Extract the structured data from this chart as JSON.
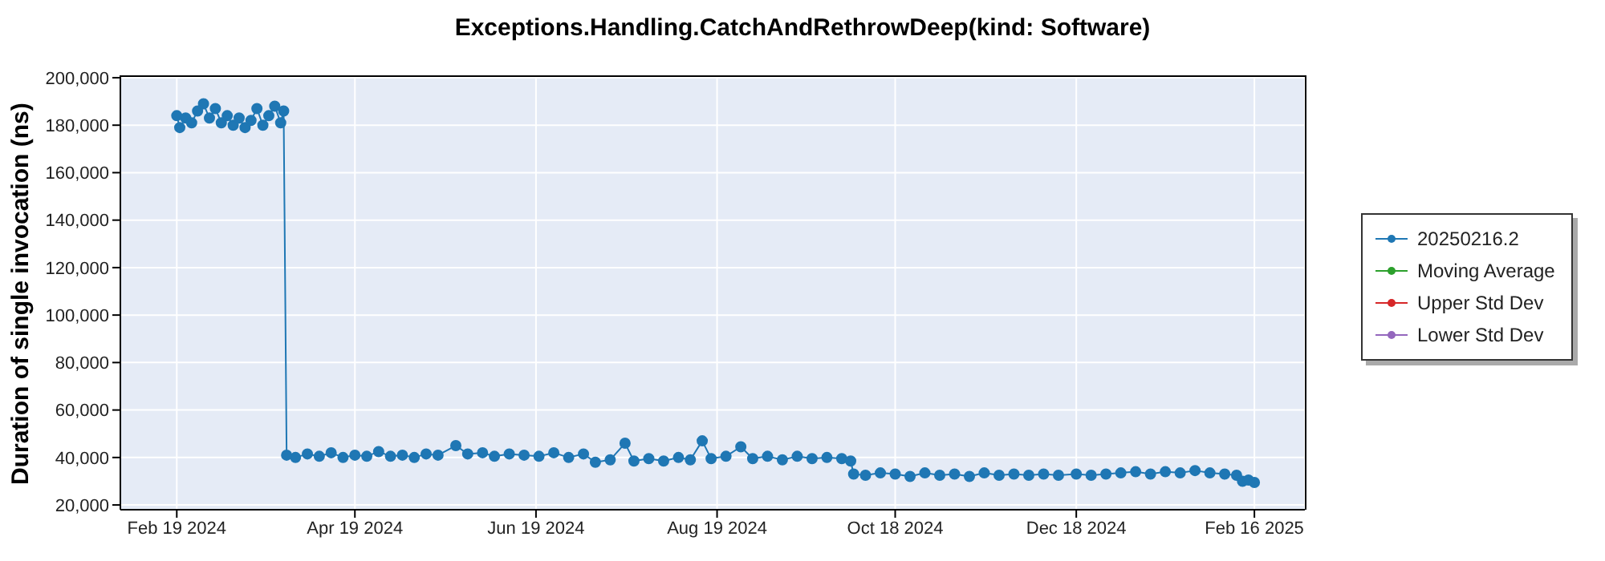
{
  "chart_data": {
    "type": "line",
    "title": "Exceptions.Handling.CatchAndRethrowDeep(kind: Software)",
    "ylabel": "Duration of single invocation (ns)",
    "xlim": [
      "2024-01-31",
      "2025-03-05"
    ],
    "xticks": [
      {
        "value": "2024-02-19",
        "label": "Feb 19 2024"
      },
      {
        "value": "2024-04-19",
        "label": "Apr 19 2024"
      },
      {
        "value": "2024-06-19",
        "label": "Jun 19 2024"
      },
      {
        "value": "2024-08-19",
        "label": "Aug 19 2024"
      },
      {
        "value": "2024-10-18",
        "label": "Oct 18 2024"
      },
      {
        "value": "2024-12-18",
        "label": "Dec 18 2024"
      },
      {
        "value": "2025-02-16",
        "label": "Feb 16 2025"
      }
    ],
    "ylim": [
      18000,
      201000
    ],
    "yticks": [
      {
        "value": 20000,
        "label": "20,000"
      },
      {
        "value": 40000,
        "label": "40,000"
      },
      {
        "value": 60000,
        "label": "60,000"
      },
      {
        "value": 80000,
        "label": "80,000"
      },
      {
        "value": 100000,
        "label": "100,000"
      },
      {
        "value": 120000,
        "label": "120,000"
      },
      {
        "value": 140000,
        "label": "140,000"
      },
      {
        "value": 160000,
        "label": "160,000"
      },
      {
        "value": 180000,
        "label": "180,000"
      },
      {
        "value": 200000,
        "label": "200,000"
      }
    ],
    "grid": true,
    "legend": "right",
    "marker": "circle",
    "line_style": "solid",
    "series": [
      {
        "name": "20250216.2",
        "color": "#1f77b4",
        "x": [
          "2024-02-19",
          "2024-02-20",
          "2024-02-22",
          "2024-02-24",
          "2024-02-26",
          "2024-02-28",
          "2024-03-01",
          "2024-03-03",
          "2024-03-05",
          "2024-03-07",
          "2024-03-09",
          "2024-03-11",
          "2024-03-13",
          "2024-03-15",
          "2024-03-17",
          "2024-03-19",
          "2024-03-21",
          "2024-03-23",
          "2024-03-25",
          "2024-03-26",
          "2024-03-27",
          "2024-03-30",
          "2024-04-03",
          "2024-04-07",
          "2024-04-11",
          "2024-04-15",
          "2024-04-19",
          "2024-04-23",
          "2024-04-27",
          "2024-05-01",
          "2024-05-05",
          "2024-05-09",
          "2024-05-13",
          "2024-05-17",
          "2024-05-23",
          "2024-05-27",
          "2024-06-01",
          "2024-06-05",
          "2024-06-10",
          "2024-06-15",
          "2024-06-20",
          "2024-06-25",
          "2024-06-30",
          "2024-07-05",
          "2024-07-09",
          "2024-07-14",
          "2024-07-19",
          "2024-07-22",
          "2024-07-27",
          "2024-08-01",
          "2024-08-06",
          "2024-08-10",
          "2024-08-14",
          "2024-08-17",
          "2024-08-22",
          "2024-08-27",
          "2024-08-31",
          "2024-09-05",
          "2024-09-10",
          "2024-09-15",
          "2024-09-20",
          "2024-09-25",
          "2024-09-30",
          "2024-10-03",
          "2024-10-04",
          "2024-10-08",
          "2024-10-13",
          "2024-10-18",
          "2024-10-23",
          "2024-10-28",
          "2024-11-02",
          "2024-11-07",
          "2024-11-12",
          "2024-11-17",
          "2024-11-22",
          "2024-11-27",
          "2024-12-02",
          "2024-12-07",
          "2024-12-12",
          "2024-12-18",
          "2024-12-23",
          "2024-12-28",
          "2025-01-02",
          "2025-01-07",
          "2025-01-12",
          "2025-01-17",
          "2025-01-22",
          "2025-01-27",
          "2025-02-01",
          "2025-02-06",
          "2025-02-10",
          "2025-02-12",
          "2025-02-14",
          "2025-02-16"
        ],
        "values": [
          184000,
          179000,
          183000,
          181000,
          186000,
          189000,
          183000,
          187000,
          181000,
          184000,
          180000,
          183000,
          179000,
          182000,
          187000,
          180000,
          184000,
          188000,
          181000,
          186000,
          41000,
          40000,
          41500,
          40500,
          42000,
          40000,
          41000,
          40500,
          42500,
          40500,
          41000,
          40000,
          41500,
          41000,
          45000,
          41500,
          42000,
          40500,
          41500,
          41000,
          40500,
          42000,
          40000,
          41500,
          38000,
          39000,
          46000,
          38500,
          39500,
          38500,
          40000,
          39000,
          47000,
          39500,
          40500,
          44500,
          39500,
          40500,
          39000,
          40500,
          39500,
          40000,
          39500,
          38500,
          33000,
          32500,
          33500,
          33000,
          32000,
          33500,
          32500,
          33000,
          32000,
          33500,
          32500,
          33000,
          32500,
          33000,
          32500,
          33000,
          32500,
          33000,
          33500,
          34000,
          33000,
          34000,
          33500,
          34500,
          33500,
          33000,
          32500,
          30000,
          30500,
          29500
        ]
      },
      {
        "name": "Moving Average",
        "color": "#2ca02c"
      },
      {
        "name": "Upper Std Dev",
        "color": "#d62728"
      },
      {
        "name": "Lower Std Dev",
        "color": "#9467bd"
      }
    ]
  }
}
